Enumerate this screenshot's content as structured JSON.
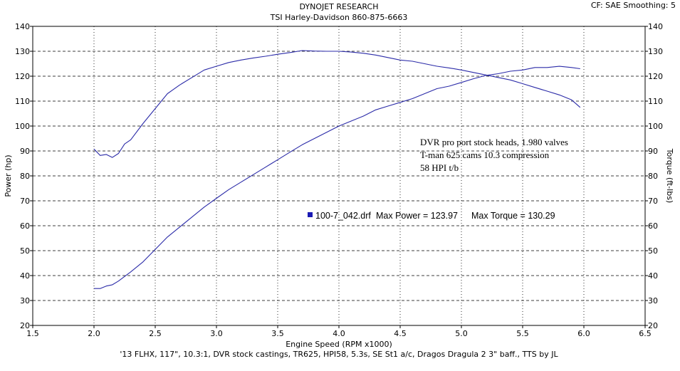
{
  "header": {
    "title": "DYNOJET RESEARCH",
    "subtitle": "TSI Harley-Davidson 860-875-6663",
    "settings": "CF: SAE  Smoothing: 5"
  },
  "chart_data": {
    "type": "line",
    "xlabel": "Engine Speed (RPM x1000)",
    "ylabel_left": "Power (hp)",
    "ylabel_right": "Torque (ft-lbs)",
    "xlim": [
      1.5,
      6.5
    ],
    "ylim": [
      20,
      140
    ],
    "x_ticks": [
      "1.5",
      "2.0",
      "2.5",
      "3.0",
      "3.5",
      "4.0",
      "4.5",
      "5.0",
      "5.5",
      "6.0",
      "6.5"
    ],
    "y_ticks": [
      "20",
      "30",
      "40",
      "50",
      "60",
      "70",
      "80",
      "90",
      "100",
      "110",
      "120",
      "130",
      "140"
    ],
    "grid": "horizontal-dashed-and-vertical-dotted",
    "line_color": "#2b2ba8",
    "series": [
      {
        "key": "power",
        "x": [
          2.0,
          2.05,
          2.1,
          2.15,
          2.2,
          2.3,
          2.4,
          2.5,
          2.6,
          2.7,
          2.8,
          2.9,
          3.0,
          3.1,
          3.2,
          3.3,
          3.4,
          3.5,
          3.6,
          3.7,
          3.8,
          3.9,
          4.0,
          4.1,
          4.2,
          4.3,
          4.4,
          4.5,
          4.6,
          4.7,
          4.8,
          4.9,
          5.0,
          5.1,
          5.2,
          5.3,
          5.4,
          5.5,
          5.6,
          5.7,
          5.8,
          5.9,
          5.97
        ],
        "values": [
          34.8,
          34.8,
          35.8,
          36.3,
          37.8,
          41.5,
          45.5,
          50.5,
          55.5,
          59.5,
          63.5,
          67.5,
          71.0,
          74.5,
          77.5,
          80.5,
          83.5,
          86.5,
          89.5,
          92.5,
          95.0,
          97.5,
          100.0,
          102.0,
          104.0,
          106.5,
          108.0,
          109.5,
          111.0,
          113.0,
          115.0,
          116.0,
          117.5,
          119.0,
          120.3,
          121.0,
          122.0,
          122.5,
          123.5,
          123.5,
          123.97,
          123.5,
          123.0
        ]
      },
      {
        "key": "torque",
        "x": [
          2.0,
          2.05,
          2.1,
          2.15,
          2.2,
          2.25,
          2.3,
          2.4,
          2.5,
          2.6,
          2.7,
          2.8,
          2.9,
          3.0,
          3.1,
          3.2,
          3.3,
          3.4,
          3.5,
          3.6,
          3.7,
          3.8,
          3.9,
          4.0,
          4.1,
          4.2,
          4.3,
          4.4,
          4.5,
          4.6,
          4.7,
          4.8,
          4.9,
          5.0,
          5.1,
          5.2,
          5.3,
          5.4,
          5.5,
          5.6,
          5.7,
          5.8,
          5.9,
          5.97
        ],
        "values": [
          90.8,
          88.2,
          88.6,
          87.4,
          89.0,
          92.8,
          94.5,
          101.0,
          107.0,
          113.0,
          116.5,
          119.5,
          122.5,
          124.0,
          125.5,
          126.5,
          127.3,
          128.0,
          128.8,
          129.5,
          130.29,
          130.1,
          130.0,
          130.0,
          129.7,
          129.2,
          128.5,
          127.5,
          126.5,
          126.0,
          125.0,
          124.0,
          123.3,
          122.5,
          121.5,
          120.5,
          119.5,
          118.5,
          117.0,
          115.5,
          114.0,
          112.5,
          110.5,
          107.5
        ]
      }
    ],
    "annotation": {
      "lines": [
        "DVR pro port stock heads, 1.980 valves",
        "T-man  625 cams      10.3 compression",
        "58 HPI t/b"
      ]
    },
    "legend": {
      "file": "100-7_042.drf",
      "max_power_text": "Max Power = 123.97",
      "max_torque_text": "Max Torque = 130.29",
      "marker_color": "#1a1ab4"
    }
  },
  "footer": {
    "description": "'13 FLHX, 117\", 10.3:1, DVR stock castings, TR625, HPI58, 5.3s, SE St1 a/c, Dragos Dragula 2 3\" baff., TTS by JL"
  }
}
